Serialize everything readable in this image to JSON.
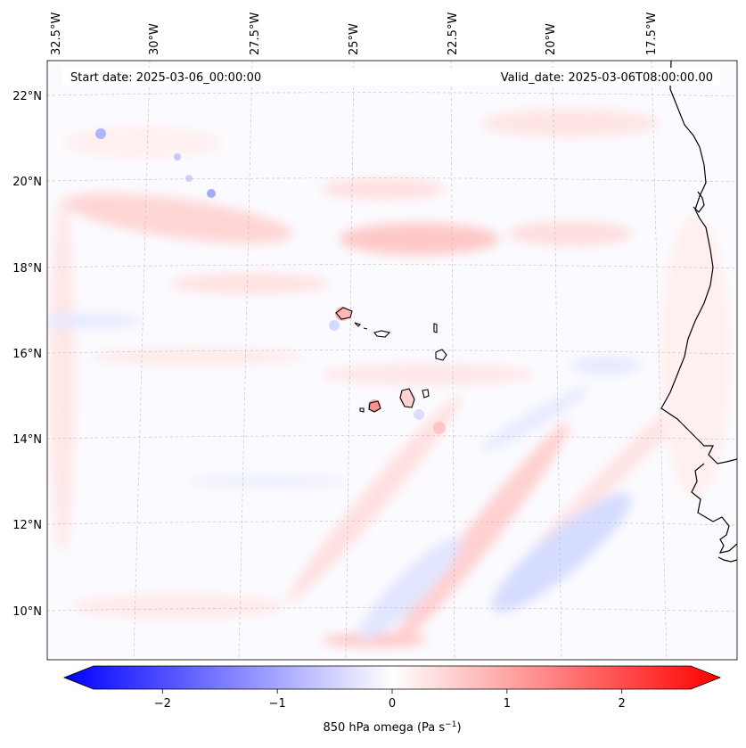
{
  "header": {
    "start_date": "Start date: 2025-03-06_00:00:00",
    "valid_date": "Valid_date: 2025-03-06T08:00:00.00"
  },
  "map": {
    "projection": "lambert-conformal",
    "lon_labels": [
      "32.5°W",
      "30°W",
      "27.5°W",
      "25°W",
      "22.5°W",
      "20°W",
      "17.5°W"
    ],
    "lat_labels": [
      "22°N",
      "20°N",
      "18°N",
      "16°N",
      "14°N",
      "12°N",
      "10°N"
    ],
    "gridlines": true,
    "coastline_color": "#000000"
  },
  "colorbar": {
    "label": "850 hPa omega (Pa s",
    "label_sup": "−1",
    "label_tail": ")",
    "ticks": [
      "−2",
      "−1",
      "0",
      "1",
      "2"
    ],
    "range": [
      -2.6,
      2.6
    ],
    "extend": "both",
    "cmap": "bwr",
    "colors": {
      "negative": "#0000ff",
      "zero": "#ffffff",
      "positive": "#ff0000"
    }
  }
}
